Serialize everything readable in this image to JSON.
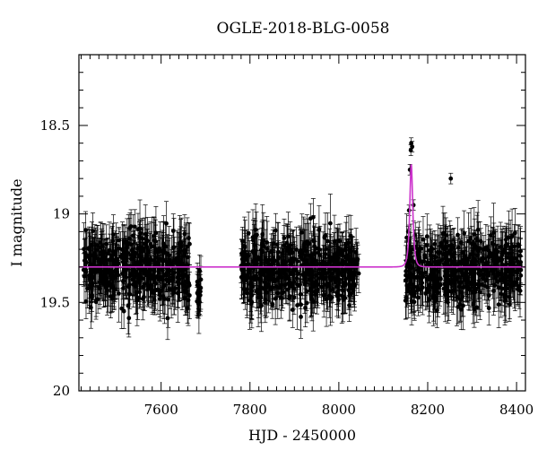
{
  "chart_data": {
    "type": "scatter",
    "title": "OGLE-2018-BLG-0058",
    "xlabel": "HJD - 2450000",
    "ylabel": "I magnitude",
    "xlim": [
      7415,
      8420
    ],
    "ylim": [
      20.0,
      18.1
    ],
    "y_inverted": true,
    "xticks": [
      7600,
      7800,
      8000,
      8200,
      8400
    ],
    "yticks": [
      18.5,
      19,
      19.5,
      20
    ],
    "ytick_labels": [
      "18.5",
      "19",
      "19.5",
      "20"
    ],
    "grid": false,
    "legend": "none",
    "point_color": "#000000",
    "model_color": "#cc33cc",
    "series": [
      {
        "kind": "photometry with error bars",
        "seasons": [
          {
            "x_range": [
              7425,
              7665
            ],
            "mean_mag": 19.3,
            "scatter_mag": 0.17,
            "err_mag": 0.12
          },
          {
            "x_range": [
              7680,
              7690
            ],
            "mean_mag": 19.45,
            "scatter_mag": 0.1,
            "err_mag": 0.1
          },
          {
            "x_range": [
              7780,
              8045
            ],
            "mean_mag": 19.32,
            "scatter_mag": 0.16,
            "err_mag": 0.12
          },
          {
            "x_range": [
              8150,
              8410
            ],
            "mean_mag": 19.32,
            "scatter_mag": 0.16,
            "err_mag": 0.12
          }
        ],
        "peak_points": [
          {
            "x": 8163,
            "y": 18.6
          },
          {
            "x": 8165,
            "y": 18.62
          },
          {
            "x": 8162,
            "y": 18.64
          },
          {
            "x": 8160,
            "y": 18.75
          },
          {
            "x": 8158,
            "y": 18.98
          },
          {
            "x": 8168,
            "y": 18.95
          },
          {
            "x": 8156,
            "y": 19.1
          },
          {
            "x": 8171,
            "y": 19.12
          },
          {
            "x": 8252,
            "y": 18.8
          }
        ]
      },
      {
        "kind": "microlensing model",
        "baseline_mag": 19.3,
        "peak_x": 8163,
        "peak_mag": 18.72,
        "tE_days": 5
      }
    ]
  }
}
